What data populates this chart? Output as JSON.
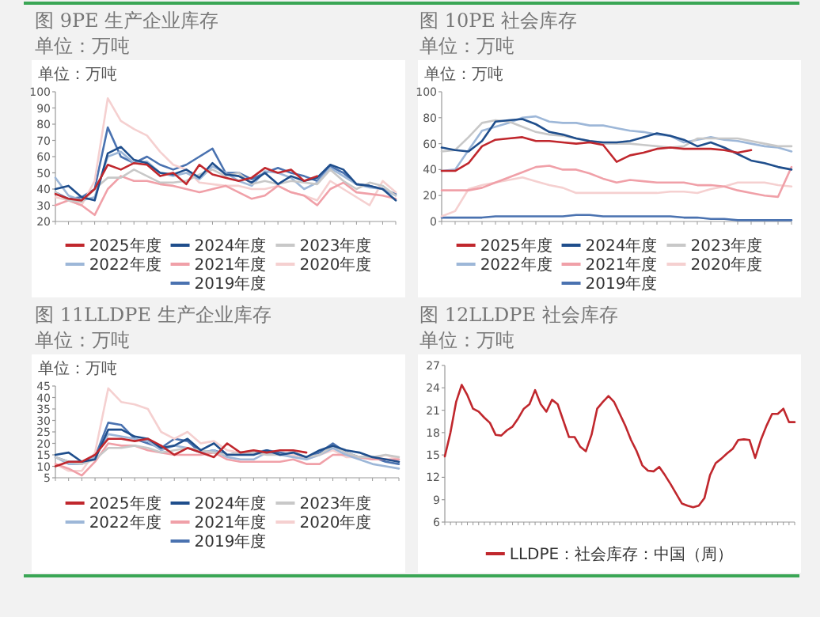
{
  "chart_data": [
    {
      "type": "line",
      "title": "图 9PE 生产企业库存",
      "subtitle": "单位：万吨",
      "ylabel": "单位：万吨",
      "legend": "bottom",
      "ylim": [
        20,
        100
      ],
      "yticks": [
        20,
        30,
        40,
        50,
        60,
        70,
        80,
        90,
        100
      ],
      "categories": [
        null,
        null,
        null,
        null,
        null,
        null,
        null,
        null,
        null,
        null,
        null,
        null,
        null,
        null,
        null,
        null,
        null,
        null,
        null,
        null,
        null,
        null,
        null,
        null,
        null,
        null,
        null
      ],
      "series": [
        {
          "name": "2025年度",
          "color": "#c0272d",
          "values": [
            37,
            34,
            33,
            40,
            55,
            52,
            56,
            55,
            48,
            50,
            43,
            55,
            49,
            47,
            45,
            47,
            53,
            50,
            52,
            45,
            48,
            null,
            null,
            null,
            null,
            null,
            null
          ]
        },
        {
          "name": "2024年度",
          "color": "#1f4e8c",
          "values": [
            40,
            42,
            35,
            33,
            62,
            66,
            58,
            56,
            50,
            49,
            52,
            47,
            56,
            49,
            48,
            44,
            50,
            43,
            48,
            45,
            47,
            55,
            52,
            43,
            42,
            40,
            33
          ]
        },
        {
          "name": "2023年度",
          "color": "#c8c8c8",
          "values": [
            38,
            33,
            32,
            40,
            47,
            47,
            52,
            48,
            44,
            44,
            45,
            49,
            52,
            48,
            50,
            43,
            45,
            43,
            45,
            44,
            43,
            52,
            45,
            40,
            44,
            42,
            36
          ]
        },
        {
          "name": "2022年度",
          "color": "#9db7d8",
          "values": [
            47,
            36,
            33,
            35,
            60,
            63,
            56,
            57,
            50,
            48,
            50,
            46,
            54,
            50,
            45,
            42,
            51,
            50,
            47,
            40,
            44,
            53,
            48,
            43,
            41,
            40,
            36
          ]
        },
        {
          "name": "2021年度",
          "color": "#f0a0a8",
          "values": [
            30,
            33,
            30,
            24,
            40,
            48,
            45,
            45,
            43,
            42,
            40,
            38,
            40,
            42,
            38,
            34,
            36,
            42,
            38,
            36,
            30,
            40,
            44,
            38,
            37,
            36,
            34
          ]
        },
        {
          "name": "2020年度",
          "color": "#f5d0d0",
          "values": [
            35,
            33,
            30,
            45,
            96,
            82,
            77,
            73,
            63,
            55,
            52,
            44,
            43,
            42,
            42,
            40,
            40,
            42,
            38,
            36,
            33,
            45,
            40,
            35,
            30,
            45,
            38
          ]
        },
        {
          "name": "2019年度",
          "color": "#4a72b0",
          "values": [
            38,
            34,
            35,
            40,
            78,
            60,
            56,
            60,
            55,
            52,
            55,
            60,
            65,
            50,
            50,
            46,
            50,
            53,
            50,
            48,
            45,
            54,
            50,
            43,
            42,
            40,
            37
          ]
        }
      ]
    },
    {
      "type": "line",
      "title": "图 10PE 社会库存",
      "subtitle": "单位：万吨",
      "ylabel": "单位：万吨",
      "legend": "bottom",
      "ylim": [
        0,
        100
      ],
      "yticks": [
        0,
        20,
        40,
        60,
        80,
        100
      ],
      "categories": [
        null,
        null,
        null,
        null,
        null,
        null,
        null,
        null,
        null,
        null,
        null,
        null,
        null,
        null,
        null,
        null,
        null,
        null,
        null,
        null,
        null,
        null,
        null,
        null,
        null,
        null,
        null
      ],
      "series": [
        {
          "name": "2025年度",
          "color": "#c0272d",
          "values": [
            39,
            39,
            45,
            58,
            63,
            64,
            65,
            62,
            62,
            61,
            60,
            61,
            59,
            46,
            51,
            53,
            56,
            57,
            56,
            56,
            56,
            55,
            53,
            55,
            null,
            null,
            null
          ]
        },
        {
          "name": "2024年度",
          "color": "#1f4e8c",
          "values": [
            57,
            55,
            54,
            62,
            77,
            78,
            79,
            75,
            69,
            67,
            64,
            62,
            61,
            61,
            62,
            65,
            68,
            66,
            63,
            58,
            61,
            57,
            52,
            47,
            45,
            42,
            40
          ]
        },
        {
          "name": "2023年度",
          "color": "#c8c8c8",
          "values": [
            54,
            55,
            65,
            76,
            78,
            77,
            73,
            69,
            67,
            66,
            64,
            62,
            60,
            60,
            60,
            59,
            58,
            57,
            58,
            64,
            64,
            64,
            64,
            62,
            60,
            58,
            58
          ]
        },
        {
          "name": "2022年度",
          "color": "#9db7d8",
          "values": [
            39,
            40,
            55,
            70,
            73,
            76,
            80,
            81,
            77,
            76,
            76,
            74,
            74,
            72,
            70,
            69,
            67,
            66,
            61,
            63,
            65,
            63,
            62,
            60,
            58,
            57,
            54
          ]
        },
        {
          "name": "2021年度",
          "color": "#f0a0a8",
          "values": [
            24,
            24,
            24,
            26,
            30,
            34,
            38,
            42,
            43,
            40,
            40,
            37,
            33,
            30,
            32,
            31,
            30,
            30,
            30,
            28,
            28,
            27,
            24,
            22,
            20,
            19,
            42
          ]
        },
        {
          "name": "2020年度",
          "color": "#f5d0d0",
          "values": [
            4,
            8,
            25,
            28,
            30,
            32,
            34,
            31,
            28,
            26,
            22,
            22,
            22,
            22,
            22,
            22,
            22,
            23,
            23,
            22,
            25,
            27,
            30,
            30,
            30,
            28,
            27
          ]
        },
        {
          "name": "2019年度",
          "color": "#4a72b0",
          "values": [
            3,
            3,
            3,
            3,
            4,
            4,
            4,
            4,
            4,
            4,
            5,
            5,
            4,
            4,
            4,
            4,
            4,
            4,
            3,
            3,
            2,
            2,
            1,
            1,
            1,
            1,
            1
          ]
        }
      ]
    },
    {
      "type": "line",
      "title": "图 11LLDPE 生产企业库存",
      "subtitle": "单位：万吨",
      "ylabel": "单位：万吨",
      "legend": "bottom",
      "ylim": [
        5,
        45
      ],
      "yticks": [
        5,
        10,
        15,
        20,
        25,
        30,
        35,
        40,
        45
      ],
      "categories": [
        null,
        null,
        null,
        null,
        null,
        null,
        null,
        null,
        null,
        null,
        null,
        null,
        null,
        null,
        null,
        null,
        null,
        null,
        null,
        null,
        null,
        null,
        null,
        null,
        null,
        null,
        null
      ],
      "series": [
        {
          "name": "2025年度",
          "color": "#c0272d",
          "values": [
            10,
            12,
            12,
            15,
            22,
            22,
            21,
            22,
            19,
            15,
            18,
            16,
            14,
            20,
            16,
            17,
            16,
            17,
            17,
            16,
            null,
            null,
            null,
            null,
            null,
            null,
            null
          ]
        },
        {
          "name": "2024年度",
          "color": "#1f4e8c",
          "values": [
            15,
            16,
            12,
            13,
            26,
            26,
            23,
            22,
            18,
            19,
            22,
            17,
            20,
            15,
            15,
            15,
            17,
            15,
            16,
            14,
            17,
            19,
            17,
            16,
            14,
            13,
            12
          ]
        },
        {
          "name": "2023年度",
          "color": "#c8c8c8",
          "values": [
            14,
            12,
            11,
            13,
            18,
            18,
            19,
            18,
            16,
            17,
            18,
            17,
            16,
            15,
            16,
            16,
            15,
            15,
            16,
            14,
            15,
            19,
            16,
            14,
            14,
            15,
            14
          ]
        },
        {
          "name": "2022年度",
          "color": "#9db7d8",
          "values": [
            14,
            11,
            11,
            14,
            24,
            23,
            22,
            21,
            17,
            19,
            18,
            16,
            17,
            14,
            13,
            13,
            16,
            15,
            14,
            13,
            15,
            18,
            15,
            13,
            11,
            10,
            9
          ]
        },
        {
          "name": "2021年度",
          "color": "#f0a0a8",
          "values": [
            11,
            9,
            6,
            12,
            20,
            19,
            19,
            17,
            16,
            15,
            15,
            15,
            16,
            13,
            12,
            12,
            12,
            12,
            13,
            11,
            11,
            15,
            15,
            14,
            13,
            13,
            13
          ]
        },
        {
          "name": "2020年度",
          "color": "#f5d0d0",
          "values": [
            11,
            8,
            8,
            16,
            44,
            38,
            37,
            35,
            25,
            22,
            25,
            20,
            21,
            17,
            16,
            17,
            16,
            15,
            15,
            13,
            15,
            17,
            14,
            14,
            13,
            15,
            13
          ]
        },
        {
          "name": "2019年度",
          "color": "#4a72b0",
          "values": [
            14,
            12,
            12,
            14,
            29,
            28,
            22,
            20,
            18,
            22,
            21,
            16,
            17,
            15,
            16,
            16,
            17,
            16,
            15,
            14,
            16,
            20,
            16,
            14,
            14,
            12,
            11
          ]
        }
      ]
    },
    {
      "type": "line",
      "title": "图 12LLDPE 社会库存",
      "subtitle": "单位：万吨",
      "legend": "bottom",
      "ylim": [
        6,
        27
      ],
      "yticks": [
        6,
        9,
        12,
        15,
        18,
        21,
        24,
        27
      ],
      "categories": [
        null,
        null,
        null,
        null,
        null,
        null,
        null,
        null,
        null,
        null,
        null,
        null,
        null,
        null,
        null,
        null,
        null,
        null,
        null,
        null,
        null,
        null,
        null,
        null,
        null,
        null,
        null,
        null,
        null,
        null,
        null,
        null,
        null,
        null,
        null,
        null,
        null,
        null,
        null,
        null,
        null,
        null,
        null,
        null,
        null,
        null,
        null,
        null,
        null,
        null,
        null,
        null,
        null,
        null,
        null,
        null,
        null,
        null,
        null,
        null,
        null,
        null,
        null
      ],
      "series": [
        {
          "name": "LLDPE：社会库存：中国（周）",
          "color": "#c0272d",
          "values": [
            14.8,
            18,
            22.1,
            24.4,
            23,
            21.2,
            20.8,
            20,
            19.3,
            17.7,
            17.6,
            18.3,
            18.8,
            19.9,
            21.2,
            21.8,
            23.7,
            21.8,
            20.8,
            22.4,
            21.8,
            19.6,
            17.4,
            17.4,
            16.1,
            15.5,
            17.7,
            21.2,
            22.1,
            22.9,
            22.1,
            20.5,
            18.9,
            17,
            15.5,
            13.6,
            12.9,
            12.8,
            13.4,
            12.3,
            11.1,
            9.8,
            8.5,
            8.2,
            8,
            8.2,
            9.2,
            12.3,
            13.9,
            14.5,
            15.2,
            15.8,
            17,
            17.1,
            17,
            14.6,
            17,
            18.9,
            20.5,
            20.5,
            21.2,
            19.4,
            19.4
          ]
        }
      ]
    }
  ]
}
